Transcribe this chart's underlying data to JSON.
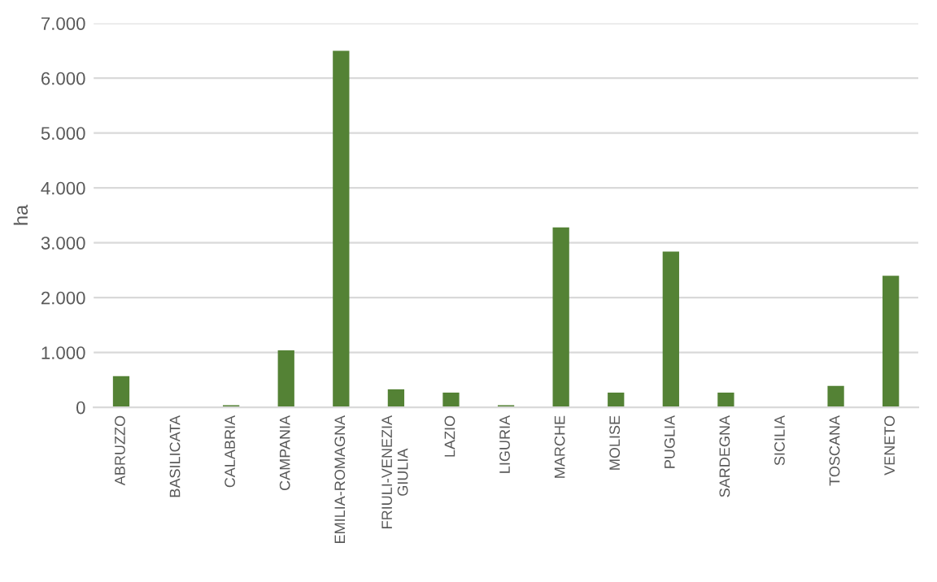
{
  "chart_data": {
    "type": "bar",
    "ylabel": "ha",
    "categories": [
      "ABRUZZO",
      "BASILICATA",
      "CALABRIA",
      "CAMPANIA",
      "EMILIA-ROMAGNA",
      "FRIULI-VENEZIA\nGIULIA",
      "LAZIO",
      "LIGURIA",
      "MARCHE",
      "MOLISE",
      "PUGLIA",
      "SARDEGNA",
      "SICILIA",
      "TOSCANA",
      "VENETO"
    ],
    "values": [
      570,
      null,
      40,
      1040,
      6500,
      330,
      270,
      40,
      3280,
      270,
      2840,
      270,
      null,
      390,
      2400
    ],
    "color": "#548235",
    "ylim": [
      0,
      7000
    ],
    "yticks": [
      {
        "value": 0,
        "label": "0"
      },
      {
        "value": 1000,
        "label": "1.000"
      },
      {
        "value": 2000,
        "label": "2.000"
      },
      {
        "value": 3000,
        "label": "3.000"
      },
      {
        "value": 4000,
        "label": "4.000"
      },
      {
        "value": 5000,
        "label": "5.000"
      },
      {
        "value": 6000,
        "label": "6.000"
      },
      {
        "value": 7000,
        "label": "7.000"
      }
    ],
    "grid": "y"
  }
}
